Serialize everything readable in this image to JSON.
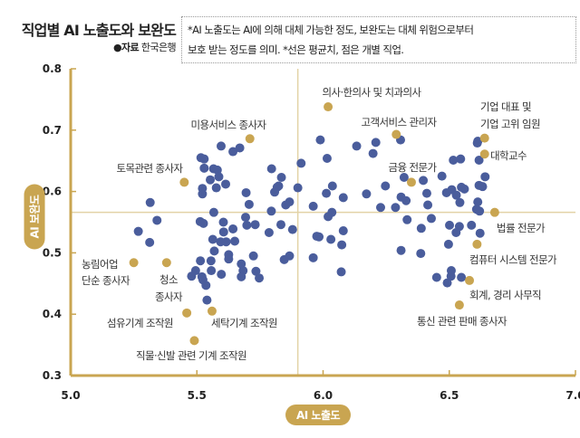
{
  "header": {
    "title": "직업별 AI 노출도와 보완도",
    "source_bullet": "●",
    "source_label": "자료",
    "source_value": "한국은행",
    "note_line1": "*AI 노출도는 AI에 의해 대체 가능한 정도, 보완도는 대체 위험으로부터",
    "note_line2": "보호 받는 정도를 의미. *선은 평균치, 점은 개별 직업."
  },
  "chart_data": {
    "type": "scatter",
    "title": "직업별 AI 노출도와 보완도",
    "xlabel": "AI 노출도",
    "ylabel": "AI 보완도",
    "xlim": [
      5.0,
      7.0
    ],
    "ylim": [
      0.3,
      0.8
    ],
    "x_ticks": [
      "5.0",
      "5.5",
      "6.0",
      "6.5",
      "7.0"
    ],
    "y_ticks": [
      "0.3",
      "0.4",
      "0.5",
      "0.6",
      "0.7",
      "0.8"
    ],
    "grid": false,
    "mean_lines": {
      "x": 5.9,
      "y": 0.566
    },
    "colors": {
      "points": "#4a5d9c",
      "highlight": "#c9a551",
      "axis": "#c9a551",
      "mean_line": "#e3d3a6"
    },
    "points": [
      [
        5.268,
        0.535
      ],
      [
        5.315,
        0.582
      ],
      [
        5.313,
        0.517
      ],
      [
        5.342,
        0.553
      ],
      [
        5.596,
        0.674
      ],
      [
        5.643,
        0.665
      ],
      [
        5.67,
        0.671
      ],
      [
        5.516,
        0.655
      ],
      [
        5.529,
        0.653
      ],
      [
        5.529,
        0.638
      ],
      [
        5.566,
        0.637
      ],
      [
        5.581,
        0.635
      ],
      [
        5.553,
        0.619
      ],
      [
        5.587,
        0.624
      ],
      [
        5.614,
        0.612
      ],
      [
        5.577,
        0.606
      ],
      [
        5.522,
        0.605
      ],
      [
        5.522,
        0.596
      ],
      [
        5.695,
        0.598
      ],
      [
        5.707,
        0.579
      ],
      [
        5.567,
        0.566
      ],
      [
        5.605,
        0.55
      ],
      [
        5.513,
        0.551
      ],
      [
        5.526,
        0.548
      ],
      [
        5.606,
        0.534
      ],
      [
        5.643,
        0.539
      ],
      [
        5.563,
        0.522
      ],
      [
        5.594,
        0.518
      ],
      [
        5.616,
        0.518
      ],
      [
        5.65,
        0.519
      ],
      [
        5.569,
        0.503
      ],
      [
        5.626,
        0.497
      ],
      [
        5.626,
        0.49
      ],
      [
        5.693,
        0.558
      ],
      [
        5.698,
        0.545
      ],
      [
        5.731,
        0.546
      ],
      [
        5.724,
        0.495
      ],
      [
        5.676,
        0.482
      ],
      [
        5.683,
        0.471
      ],
      [
        5.514,
        0.487
      ],
      [
        5.556,
        0.487
      ],
      [
        5.557,
        0.471
      ],
      [
        5.597,
        0.465
      ],
      [
        5.495,
        0.471
      ],
      [
        5.479,
        0.462
      ],
      [
        5.52,
        0.461
      ],
      [
        5.524,
        0.456
      ],
      [
        5.536,
        0.447
      ],
      [
        5.54,
        0.423
      ],
      [
        5.676,
        0.461
      ],
      [
        5.734,
        0.47
      ],
      [
        5.747,
        0.459
      ],
      [
        5.796,
        0.637
      ],
      [
        5.835,
        0.623
      ],
      [
        5.818,
        0.607
      ],
      [
        5.824,
        0.609
      ],
      [
        5.808,
        0.599
      ],
      [
        5.9,
        0.606
      ],
      [
        5.913,
        0.646
      ],
      [
        5.795,
        0.568
      ],
      [
        5.833,
        0.546
      ],
      [
        5.786,
        0.533
      ],
      [
        5.879,
        0.538
      ],
      [
        5.852,
        0.578
      ],
      [
        5.867,
        0.583
      ],
      [
        5.846,
        0.489
      ],
      [
        5.867,
        0.495
      ],
      [
        5.961,
        0.576
      ],
      [
        5.961,
        0.492
      ],
      [
        5.975,
        0.527
      ],
      [
        5.989,
        0.684
      ],
      [
        6.016,
        0.654
      ],
      [
        6.037,
        0.609
      ],
      [
        6.013,
        0.597
      ],
      [
        6.08,
        0.59
      ],
      [
        6.035,
        0.566
      ],
      [
        6.02,
        0.559
      ],
      [
        6.08,
        0.536
      ],
      [
        5.984,
        0.526
      ],
      [
        6.031,
        0.522
      ],
      [
        6.074,
        0.513
      ],
      [
        6.072,
        0.469
      ],
      [
        6.133,
        0.674
      ],
      [
        6.209,
        0.68
      ],
      [
        6.198,
        0.662
      ],
      [
        6.307,
        0.684
      ],
      [
        6.172,
        0.596
      ],
      [
        6.247,
        0.609
      ],
      [
        6.228,
        0.574
      ],
      [
        6.287,
        0.574
      ],
      [
        6.309,
        0.591
      ],
      [
        6.329,
        0.585
      ],
      [
        6.321,
        0.623
      ],
      [
        6.333,
        0.554
      ],
      [
        6.397,
        0.618
      ],
      [
        6.411,
        0.597
      ],
      [
        6.415,
        0.578
      ],
      [
        6.429,
        0.556
      ],
      [
        6.389,
        0.54
      ],
      [
        6.309,
        0.504
      ],
      [
        6.387,
        0.499
      ],
      [
        6.471,
        0.625
      ],
      [
        6.489,
        0.598
      ],
      [
        6.51,
        0.603
      ],
      [
        6.528,
        0.594
      ],
      [
        6.542,
        0.582
      ],
      [
        6.548,
        0.607
      ],
      [
        6.56,
        0.604
      ],
      [
        6.516,
        0.651
      ],
      [
        6.545,
        0.653
      ],
      [
        6.501,
        0.545
      ],
      [
        6.54,
        0.543
      ],
      [
        6.527,
        0.533
      ],
      [
        6.588,
        0.545
      ],
      [
        6.622,
        0.532
      ],
      [
        6.497,
        0.514
      ],
      [
        6.45,
        0.46
      ],
      [
        6.508,
        0.471
      ],
      [
        6.507,
        0.462
      ],
      [
        6.492,
        0.451
      ],
      [
        6.548,
        0.46
      ],
      [
        6.613,
        0.682
      ],
      [
        6.611,
        0.679
      ],
      [
        6.618,
        0.651
      ],
      [
        6.642,
        0.624
      ],
      [
        6.618,
        0.61
      ],
      [
        6.632,
        0.608
      ],
      [
        6.613,
        0.583
      ],
      [
        6.608,
        0.571
      ],
      [
        6.62,
        0.568
      ]
    ],
    "highlighted": [
      {
        "label": "의사·한의사 및 치과의사",
        "x": 6.02,
        "y": 0.738
      },
      {
        "label": "고객서비스 관리자",
        "x": 6.29,
        "y": 0.693
      },
      {
        "label": "금융 전문가",
        "x": 6.35,
        "y": 0.615
      },
      {
        "label": "기업 대표 및",
        "label2": "기업 고위 임원",
        "x": 6.64,
        "y": 0.687
      },
      {
        "label": "대학교수",
        "x": 6.64,
        "y": 0.661
      },
      {
        "label": "법률 전문가",
        "x": 6.68,
        "y": 0.566
      },
      {
        "label": "컴퓨터 시스템 전문가",
        "x": 6.61,
        "y": 0.514
      },
      {
        "label": "회계, 경리 사무직",
        "x": 6.58,
        "y": 0.455
      },
      {
        "label": "통신 관련 판매 종사자",
        "x": 6.54,
        "y": 0.415
      },
      {
        "label": "미용서비스 종사자",
        "x": 5.71,
        "y": 0.686
      },
      {
        "label": "토목관련 종사자",
        "x": 5.45,
        "y": 0.615
      },
      {
        "label": "농림어업",
        "label2": "단순 종사자",
        "x": 5.25,
        "y": 0.484
      },
      {
        "label": "청소",
        "label2": "종사자",
        "x": 5.38,
        "y": 0.484
      },
      {
        "label": "섬유기계 조작원",
        "x": 5.46,
        "y": 0.402
      },
      {
        "label": "세탁기계 조작원",
        "x": 5.56,
        "y": 0.405
      },
      {
        "label": "직물·신발 관련 기계 조작원",
        "x": 5.49,
        "y": 0.357
      }
    ]
  }
}
